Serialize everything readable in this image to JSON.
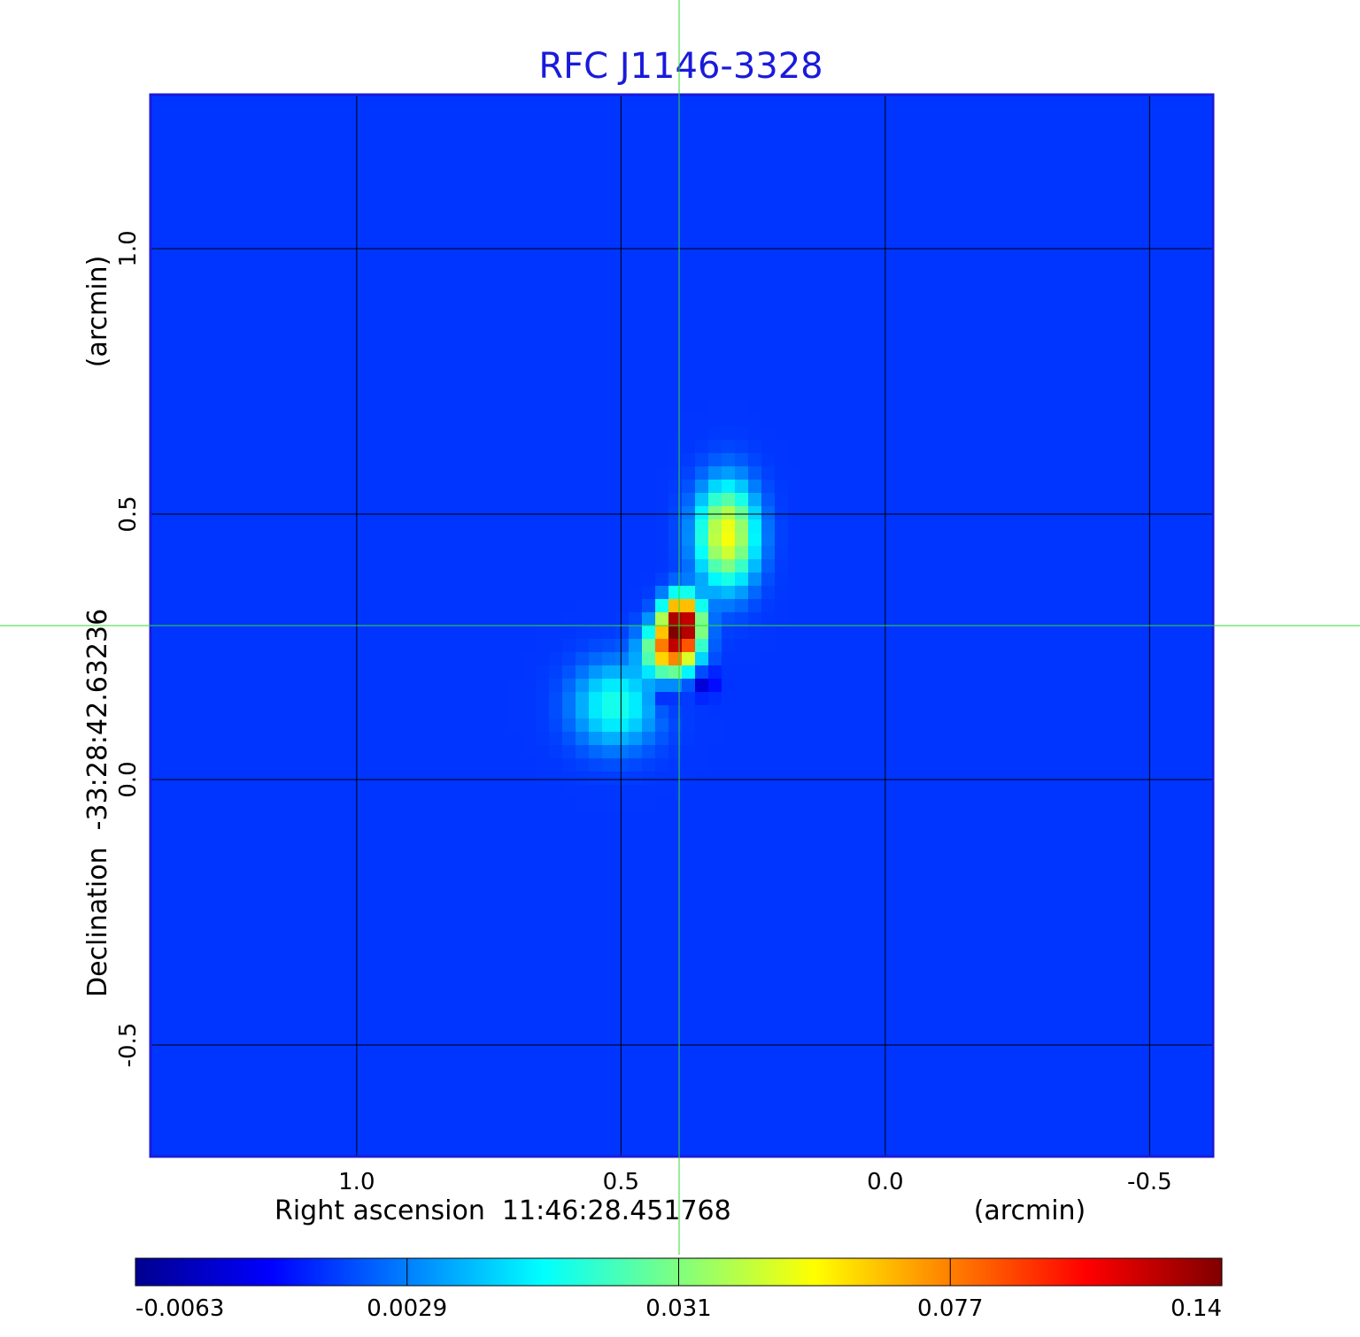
{
  "chart_data": {
    "type": "heatmap",
    "title": "RFC J1146-3328",
    "xlabel": "Right ascension  11:46:28.451768",
    "xunit": "(arcmin)",
    "ylabel": "Declination  -33:28:42.63236",
    "yunit": "(arcmin)",
    "xlim": [
      1.39,
      -0.62
    ],
    "ylim": [
      -0.71,
      1.29
    ],
    "x_ticks": [
      {
        "value": 1.0,
        "label": "1.0"
      },
      {
        "value": 0.5,
        "label": "0.5"
      },
      {
        "value": 0.0,
        "label": "0.0"
      },
      {
        "value": -0.5,
        "label": "-0.5"
      }
    ],
    "y_ticks": [
      {
        "value": 1.0,
        "label": "1.0"
      },
      {
        "value": 0.5,
        "label": "0.5"
      },
      {
        "value": 0.0,
        "label": "0.0"
      },
      {
        "value": -0.5,
        "label": "-0.5"
      }
    ],
    "grid": true,
    "crosshair": {
      "x": 0.39,
      "y": 0.29,
      "color": "#33dd33"
    },
    "colormap": "jet",
    "colorbar": {
      "position": "bottom",
      "range": [
        -0.0063,
        0.14
      ],
      "ticks": [
        "-0.0063",
        "0.0029",
        "0.031",
        "0.077",
        "0.14"
      ]
    },
    "background_level": 0.0,
    "components": [
      {
        "x": 0.385,
        "y": 0.295,
        "peak": 0.14,
        "sx": 0.022,
        "sy": 0.03
      },
      {
        "x": 0.405,
        "y": 0.245,
        "peak": 0.085,
        "sx": 0.03,
        "sy": 0.03
      },
      {
        "x": 0.3,
        "y": 0.46,
        "peak": 0.055,
        "sx": 0.035,
        "sy": 0.06
      },
      {
        "x": 0.51,
        "y": 0.14,
        "peak": 0.022,
        "sx": 0.05,
        "sy": 0.05
      },
      {
        "x": 0.345,
        "y": 0.185,
        "peak": -0.0063,
        "sx": 0.018,
        "sy": 0.018
      },
      {
        "x": 0.42,
        "y": 0.155,
        "peak": -0.0055,
        "sx": 0.018,
        "sy": 0.02
      }
    ]
  }
}
